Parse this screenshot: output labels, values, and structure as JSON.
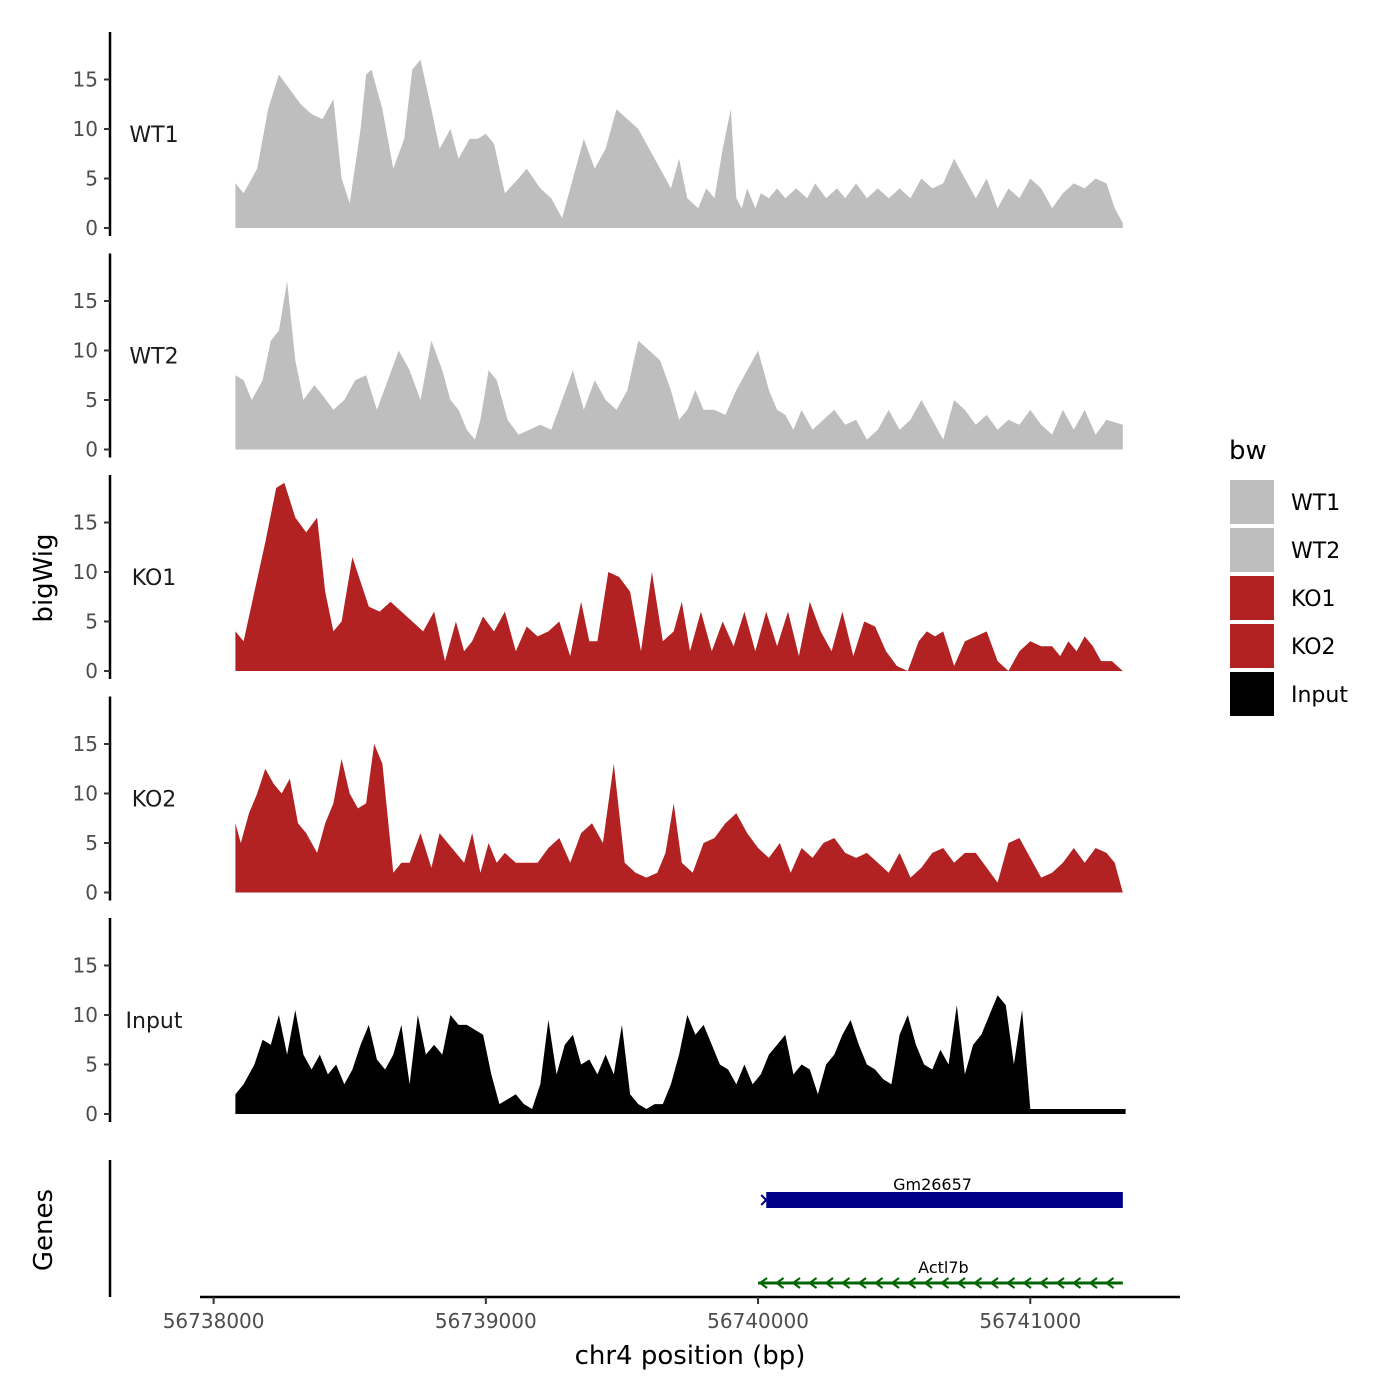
{
  "chart_data": {
    "type": "area",
    "y_axis_title": "bigWig",
    "x_axis_title": "chr4 position (bp)",
    "genes_axis_title": "Genes",
    "xlim": [
      56737950,
      56741550
    ],
    "ylim": [
      0,
      20
    ],
    "x_ticks": [
      56738000,
      56739000,
      56740000,
      56741000
    ],
    "x_tick_labels": [
      "56738000",
      "56739000",
      "56740000",
      "56741000"
    ],
    "y_ticks": [
      0,
      5,
      10,
      15
    ],
    "y_tick_labels": [
      "0",
      "5",
      "10",
      "15"
    ],
    "legend": {
      "title": "bw",
      "position": "right",
      "entries": [
        {
          "label": "WT1",
          "color": "#bebebe"
        },
        {
          "label": "WT2",
          "color": "#bebebe"
        },
        {
          "label": "KO1",
          "color": "#b22222"
        },
        {
          "label": "KO2",
          "color": "#b22222"
        },
        {
          "label": "Input",
          "color": "#000000"
        }
      ]
    },
    "series": [
      {
        "name": "WT1",
        "color": "#bebebe",
        "x": [
          56738080,
          56738110,
          56738160,
          56738200,
          56738240,
          56738280,
          56738320,
          56738360,
          56738400,
          56738440,
          56738470,
          56738500,
          56738540,
          56738560,
          56738580,
          56738620,
          56738660,
          56738700,
          56738730,
          56738760,
          56738800,
          56738830,
          56738870,
          56738900,
          56738940,
          56738970,
          56739000,
          56739030,
          56739070,
          56739120,
          56739150,
          56739200,
          56739240,
          56739280,
          56739320,
          56739360,
          56739400,
          56739440,
          56739480,
          56739520,
          56739560,
          56739600,
          56739640,
          56739680,
          56739710,
          56739740,
          56739780,
          56739810,
          56739840,
          56739870,
          56739900,
          56739920,
          56739940,
          56739960,
          56739990,
          56740010,
          56740040,
          56740070,
          56740100,
          56740140,
          56740180,
          56740210,
          56740250,
          56740290,
          56740320,
          56740360,
          56740400,
          56740440,
          56740480,
          56740520,
          56740560,
          56740600,
          56740640,
          56740680,
          56740720,
          56740760,
          56740800,
          56740840,
          56740880,
          56740920,
          56740960,
          56741000,
          56741040,
          56741080,
          56741120,
          56741160,
          56741200,
          56741240,
          56741280,
          56741310,
          56741340
        ],
        "values": [
          4.5,
          3.5,
          6,
          12,
          15.5,
          14,
          12.5,
          11.5,
          11,
          13,
          5,
          2.5,
          10,
          15.5,
          16,
          12,
          6,
          9,
          16,
          17,
          12,
          8,
          10,
          7,
          9,
          9,
          9.5,
          8.5,
          3.5,
          5,
          6,
          4,
          3,
          1,
          5,
          9,
          6,
          8,
          12,
          11,
          10,
          8,
          6,
          4,
          7,
          3,
          2,
          4,
          3,
          8,
          12,
          3,
          2,
          4,
          2,
          3.5,
          3,
          4,
          3,
          4,
          3,
          4.5,
          3,
          4,
          3,
          4.5,
          3,
          4,
          3,
          4,
          3,
          5,
          4,
          4.5,
          7,
          5,
          3,
          5,
          2,
          4,
          3,
          5,
          4,
          2,
          3.5,
          4.5,
          4,
          5,
          4.5,
          2,
          0.5
        ]
      },
      {
        "name": "WT2",
        "color": "#bebebe",
        "x": [
          56738080,
          56738110,
          56738140,
          56738180,
          56738210,
          56738240,
          56738270,
          56738300,
          56738330,
          56738370,
          56738400,
          56738440,
          56738480,
          56738520,
          56738560,
          56738600,
          56738640,
          56738680,
          56738720,
          56738760,
          56738800,
          56738840,
          56738870,
          56738900,
          56738930,
          56738960,
          56738980,
          56739010,
          56739040,
          56739080,
          56739120,
          56739160,
          56739200,
          56739240,
          56739280,
          56739320,
          56739360,
          56739400,
          56739440,
          56739480,
          56739520,
          56739560,
          56739600,
          56739640,
          56739680,
          56739710,
          56739740,
          56739770,
          56739800,
          56739840,
          56739880,
          56739920,
          56739960,
          56740000,
          56740040,
          56740070,
          56740100,
          56740130,
          56740160,
          56740200,
          56740240,
          56740280,
          56740320,
          56740360,
          56740400,
          56740440,
          56740480,
          56740520,
          56740560,
          56740600,
          56740640,
          56740680,
          56740720,
          56740760,
          56740800,
          56740840,
          56740880,
          56740920,
          56740960,
          56741000,
          56741040,
          56741080,
          56741120,
          56741160,
          56741200,
          56741240,
          56741280,
          56741340
        ],
        "values": [
          7.5,
          7,
          5,
          7,
          11,
          12,
          17,
          9,
          5,
          6.5,
          5.5,
          4,
          5,
          7,
          7.5,
          4,
          7,
          10,
          8,
          5,
          11,
          8,
          5,
          4,
          2,
          1,
          3,
          8,
          7,
          3,
          1.5,
          2,
          2.5,
          2,
          5,
          8,
          4,
          7,
          5,
          4,
          6,
          11,
          10,
          9,
          6,
          3,
          4,
          6,
          4,
          4,
          3.5,
          6,
          8,
          10,
          6,
          4,
          3.5,
          2,
          4,
          2,
          3,
          4,
          2.5,
          3,
          1,
          2,
          4,
          2,
          3,
          5,
          3,
          1,
          5,
          4,
          2.5,
          3.5,
          2,
          3,
          2.5,
          4,
          2.5,
          1.5,
          4,
          2,
          4,
          1.5,
          3,
          2.5
        ]
      },
      {
        "name": "KO1",
        "color": "#b22222",
        "x": [
          56738080,
          56738110,
          56738150,
          56738190,
          56738230,
          56738260,
          56738300,
          56738340,
          56738380,
          56738410,
          56738440,
          56738470,
          56738510,
          56738540,
          56738570,
          56738610,
          56738650,
          56738690,
          56738730,
          56738770,
          56738810,
          56738850,
          56738890,
          56738920,
          56738950,
          56738990,
          56739030,
          56739070,
          56739110,
          56739150,
          56739190,
          56739230,
          56739270,
          56739310,
          56739350,
          56739380,
          56739410,
          56739450,
          56739490,
          56739530,
          56739570,
          56739610,
          56739650,
          56739690,
          56739720,
          56739750,
          56739790,
          56739830,
          56739870,
          56739910,
          56739950,
          56739990,
          56740030,
          56740070,
          56740110,
          56740150,
          56740190,
          56740230,
          56740270,
          56740310,
          56740350,
          56740390,
          56740430,
          56740470,
          56740510,
          56740550,
          56740590,
          56740620,
          56740650,
          56740680,
          56740720,
          56740760,
          56740800,
          56740840,
          56740880,
          56740920,
          56740960,
          56741000,
          56741040,
          56741080,
          56741110,
          56741140,
          56741170,
          56741200,
          56741230,
          56741260,
          56741300,
          56741340
        ],
        "values": [
          4,
          3,
          8,
          13,
          18.5,
          19,
          15.5,
          14,
          15.5,
          8,
          4,
          5,
          11.5,
          9,
          6.5,
          6,
          7,
          6,
          5,
          4,
          6,
          1,
          5,
          2,
          3,
          5.5,
          4,
          6,
          2,
          4.5,
          3.5,
          4,
          5,
          1.5,
          7,
          3,
          3,
          10,
          9.5,
          8,
          2,
          10,
          3,
          4,
          7,
          2,
          6,
          2,
          5,
          2.5,
          6,
          2,
          6,
          2.5,
          6,
          1.5,
          7,
          4,
          2,
          6,
          1.5,
          5,
          4.5,
          2,
          0.5,
          0,
          3,
          4,
          3.5,
          4,
          0.5,
          3,
          3.5,
          4,
          1,
          0,
          2,
          3,
          2.5,
          2.5,
          1.5,
          3,
          2,
          3.5,
          2.5,
          1,
          1,
          0
        ]
      },
      {
        "name": "KO2",
        "color": "#b22222",
        "x": [
          56738080,
          56738100,
          56738130,
          56738160,
          56738190,
          56738220,
          56738250,
          56738280,
          56738310,
          56738340,
          56738380,
          56738410,
          56738440,
          56738470,
          56738500,
          56738530,
          56738560,
          56738590,
          56738620,
          56738660,
          56738690,
          56738720,
          56738760,
          56738800,
          56738830,
          56738860,
          56738890,
          56738920,
          56738950,
          56738980,
          56739010,
          56739040,
          56739070,
          56739110,
          56739150,
          56739190,
          56739230,
          56739270,
          56739310,
          56739350,
          56739390,
          56739430,
          56739470,
          56739510,
          56739550,
          56739590,
          56739630,
          56739660,
          56739690,
          56739720,
          56739760,
          56739800,
          56739840,
          56739880,
          56739920,
          56739960,
          56740000,
          56740040,
          56740080,
          56740120,
          56740160,
          56740200,
          56740240,
          56740280,
          56740320,
          56740360,
          56740400,
          56740440,
          56740480,
          56740520,
          56740560,
          56740600,
          56740640,
          56740680,
          56740720,
          56740760,
          56740800,
          56740840,
          56740880,
          56740920,
          56740960,
          56741000,
          56741040,
          56741080,
          56741120,
          56741160,
          56741200,
          56741240,
          56741280,
          56741310,
          56741340
        ],
        "values": [
          7,
          5,
          8,
          10,
          12.5,
          11,
          10,
          11.5,
          7,
          6,
          4,
          7,
          9,
          13.5,
          10,
          8.5,
          9,
          15,
          13,
          2,
          3,
          3,
          6,
          2.5,
          6,
          5,
          4,
          3,
          6,
          2,
          5,
          3,
          4,
          3,
          3,
          3,
          4.5,
          5.5,
          3,
          6,
          7,
          5,
          13,
          3,
          2,
          1.5,
          2,
          4,
          9,
          3,
          2,
          5,
          5.5,
          7,
          8,
          6,
          4.5,
          3.5,
          5,
          2,
          4.5,
          3.5,
          5,
          5.5,
          4,
          3.5,
          4,
          3,
          2,
          4,
          1.5,
          2.5,
          4,
          4.5,
          3,
          4,
          4,
          2.5,
          1,
          5,
          5.5,
          3.5,
          1.5,
          2,
          3,
          4.5,
          3,
          4.5,
          4,
          3,
          0
        ]
      },
      {
        "name": "Input",
        "color": "#000000",
        "x": [
          56738080,
          56738110,
          56738150,
          56738180,
          56738210,
          56738240,
          56738270,
          56738300,
          56738330,
          56738360,
          56738390,
          56738420,
          56738450,
          56738480,
          56738510,
          56738540,
          56738570,
          56738600,
          56738630,
          56738660,
          56738690,
          56738720,
          56738750,
          56738780,
          56738810,
          56738840,
          56738870,
          56738900,
          56738930,
          56738960,
          56738990,
          56739020,
          56739050,
          56739080,
          56739110,
          56739140,
          56739170,
          56739200,
          56739230,
          56739260,
          56739290,
          56739320,
          56739350,
          56739380,
          56739410,
          56739440,
          56739470,
          56739500,
          56739530,
          56739560,
          56739590,
          56739620,
          56739650,
          56739680,
          56739710,
          56739740,
          56739770,
          56739800,
          56739830,
          56739860,
          56739890,
          56739920,
          56739950,
          56739980,
          56740010,
          56740040,
          56740070,
          56740100,
          56740130,
          56740160,
          56740190,
          56740220,
          56740250,
          56740280,
          56740310,
          56740340,
          56740370,
          56740400,
          56740430,
          56740460,
          56740490,
          56740520,
          56740550,
          56740580,
          56740610,
          56740640,
          56740670,
          56740700,
          56740730,
          56740760,
          56740790,
          56740820,
          56740850,
          56740880,
          56740910,
          56740940,
          56740970,
          56741000,
          56741030,
          56741060,
          56741090,
          56741120,
          56741150,
          56741180,
          56741210,
          56741240,
          56741270,
          56741300,
          56741330,
          56741350
        ],
        "values": [
          2,
          3,
          5,
          7.5,
          7,
          10,
          6,
          10.5,
          6,
          4.5,
          6,
          4,
          5,
          3,
          4.5,
          7,
          9,
          5.5,
          4.5,
          6,
          9,
          3,
          10,
          6,
          7,
          6,
          10,
          9,
          9,
          8.5,
          8,
          4,
          1,
          1.5,
          2,
          1,
          0.5,
          3,
          9.5,
          4,
          7,
          8,
          5,
          5.5,
          4,
          6,
          4,
          9,
          2,
          1,
          0.5,
          1,
          1,
          3,
          6,
          10,
          8,
          9,
          7,
          5,
          4.5,
          3,
          5,
          3,
          4,
          6,
          7,
          8,
          4,
          5,
          4.5,
          2,
          5,
          6,
          8,
          9.5,
          7,
          5,
          4.5,
          3.5,
          3,
          8,
          10,
          7,
          5,
          4.5,
          6.5,
          5,
          11,
          4,
          7,
          8,
          10,
          12,
          11,
          5,
          10.5,
          0.5,
          0.5,
          0.5,
          0.5,
          0.5,
          0.5,
          0.5,
          0.5,
          0.5,
          0.5,
          0.5,
          0.5,
          0.5
        ]
      }
    ],
    "genes": [
      {
        "name": "Gm26657",
        "start": 56740030,
        "end": 56741340,
        "strand": "+",
        "color": "#00008b",
        "style": "block"
      },
      {
        "name": "Actl7b",
        "start": 56740000,
        "end": 56741340,
        "strand": "-",
        "color": "#006400",
        "style": "line"
      }
    ]
  }
}
